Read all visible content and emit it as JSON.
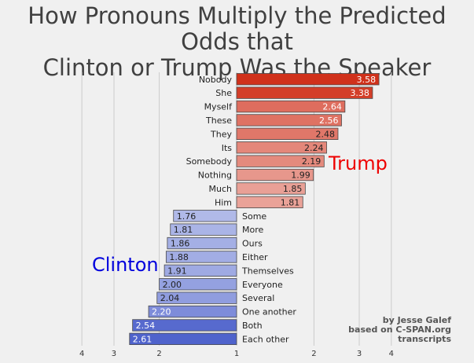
{
  "chart_data": {
    "type": "bar",
    "orientation": "horizontal",
    "title_lines": [
      "How Pronouns Multiply the Predicted Odds that",
      "Clinton or Trump Was the Speaker"
    ],
    "xscale": "log",
    "grid": true,
    "x_ticks_left": [
      "4",
      "3",
      "2"
    ],
    "x_tick_center": "1",
    "x_ticks_right": [
      "2",
      "3",
      "4"
    ],
    "series": [
      {
        "name": "Trump",
        "color": "#d0311b",
        "categories": [
          "Nobody",
          "She",
          "Myself",
          "These",
          "They",
          "Its",
          "Somebody",
          "Nothing",
          "Much",
          "Him"
        ],
        "values": [
          3.58,
          3.38,
          2.64,
          2.56,
          2.48,
          2.24,
          2.19,
          1.99,
          1.85,
          1.81
        ],
        "value_labels": [
          "3.58",
          "3.38",
          "2.64",
          "2.56",
          "2.48",
          "2.24",
          "2.19",
          "1.99",
          "1.85",
          "1.81"
        ]
      },
      {
        "name": "Clinton",
        "color": "#4f63cc",
        "categories": [
          "Some",
          "More",
          "Ours",
          "Either",
          "Themselves",
          "Everyone",
          "Several",
          "One another",
          "Both",
          "Each other"
        ],
        "values": [
          1.76,
          1.81,
          1.86,
          1.88,
          1.91,
          2.0,
          2.04,
          2.2,
          2.54,
          2.61
        ],
        "value_labels": [
          "1.76",
          "1.81",
          "1.86",
          "1.88",
          "1.91",
          "2.00",
          "2.04",
          "2.20",
          "2.54",
          "2.61"
        ]
      }
    ],
    "credit_lines": [
      "by Jesse Galef",
      "based on C-SPAN.org",
      "transcripts"
    ]
  }
}
